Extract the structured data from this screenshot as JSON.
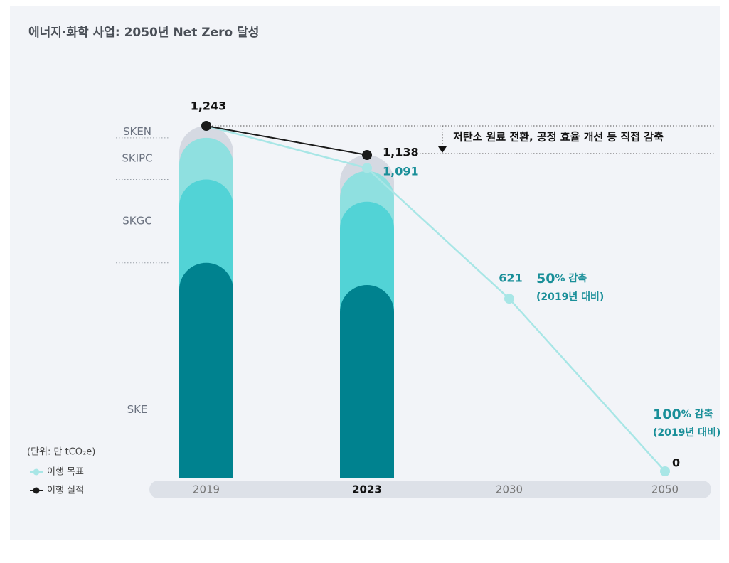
{
  "chart_data": {
    "type": "bar",
    "title": "에너지·화학 사업: 2050년 Net Zero 달성",
    "unit_label": "(단위: 만 tCO₂e)",
    "categories": [
      "2019",
      "2023",
      "2030",
      "2050"
    ],
    "bar_series": [
      {
        "name": "SKE",
        "color": "#00828f",
        "values": [
          750,
          670,
          null,
          null
        ]
      },
      {
        "name": "SKGC",
        "color": "#52d3d6",
        "values": [
          300,
          300,
          null,
          null
        ]
      },
      {
        "name": "SKIPC",
        "color": "#8fe0e0",
        "values": [
          150,
          110,
          null,
          null
        ]
      },
      {
        "name": "SKEN",
        "color": "#d5d9e2",
        "values": [
          43,
          58,
          null,
          null
        ]
      }
    ],
    "series": [
      {
        "name": "이행 목표",
        "color": "#a8e6e6",
        "values": [
          1243,
          1091,
          621,
          0
        ],
        "value_labels": [
          null,
          "1,091",
          "621",
          "0"
        ]
      },
      {
        "name": "이행 실적",
        "color": "#1a1a1a",
        "values": [
          1243,
          1138,
          null,
          null
        ],
        "value_labels": [
          "1,243",
          "1,138",
          null,
          null
        ]
      }
    ],
    "reduction_note": "저탄소 원료 전환, 공정 효율 개선 등 직접 감축",
    "annotations": [
      {
        "emphasis": "50",
        "text": "% 감축",
        "note": "(2019년 대비)"
      },
      {
        "emphasis": "100",
        "text": "% 감축",
        "note": "(2019년 대비)"
      }
    ]
  }
}
